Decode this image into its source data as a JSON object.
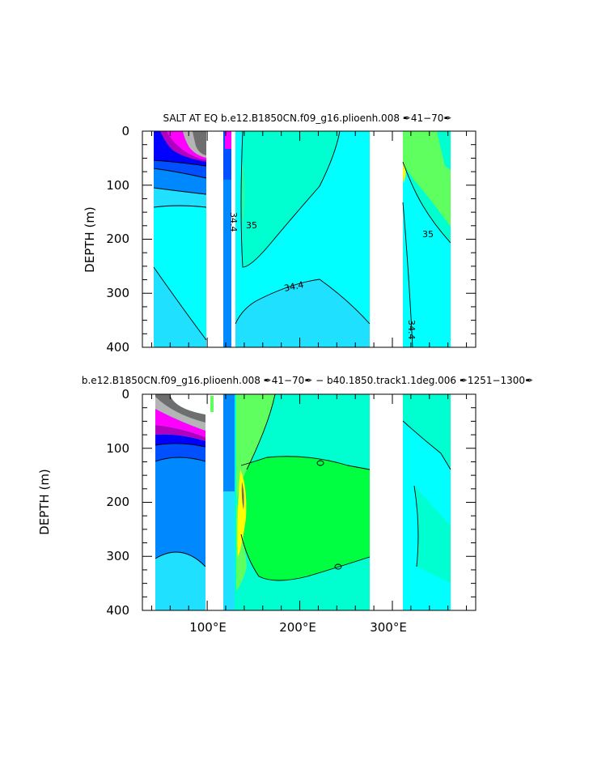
{
  "chart_data": [
    {
      "type": "contour",
      "title": "SALT AT EQ  b.e12.B1850CN.f09_g16.plioenh.008  ✒41−70✒",
      "ylabel": "DEPTH (m)",
      "xlabel": "",
      "xlim": [
        30,
        390
      ],
      "ylim": [
        400,
        0
      ],
      "y_ticks": [
        "0",
        "100",
        "200",
        "300",
        "400"
      ],
      "x_ticks": [],
      "contour_labels": [
        "34.4",
        "35",
        "35",
        "34.4",
        "34.4"
      ],
      "colors": {
        "cyan": "#00ffff",
        "sky": "#1fe0ff",
        "aqua": "#00ffd0",
        "mint": "#1affb0",
        "light_green": "#60ff60",
        "green": "#00ff40",
        "yellow": "#ffff00",
        "blue": "#0050ff",
        "mid_blue": "#0088ff",
        "dark_blue": "#0000ff",
        "magenta": "#ff00ff",
        "purple": "#b000c0",
        "gray": "#b4b4b4",
        "dark_gray": "#6e6e6e"
      }
    },
    {
      "type": "contour",
      "title": "b.e12.B1850CN.f09_g16.plioenh.008  ✒41−70✒ − b40.1850.track1.1deg.006  ✒1251−1300✒",
      "ylabel": "DEPTH (m)",
      "xlabel": "",
      "xlim": [
        30,
        390
      ],
      "ylim": [
        400,
        0
      ],
      "y_ticks": [
        "0",
        "100",
        "200",
        "300",
        "400"
      ],
      "x_ticks": [
        "100°E",
        "200°E",
        "300°E"
      ],
      "contour_labels": []
    }
  ]
}
